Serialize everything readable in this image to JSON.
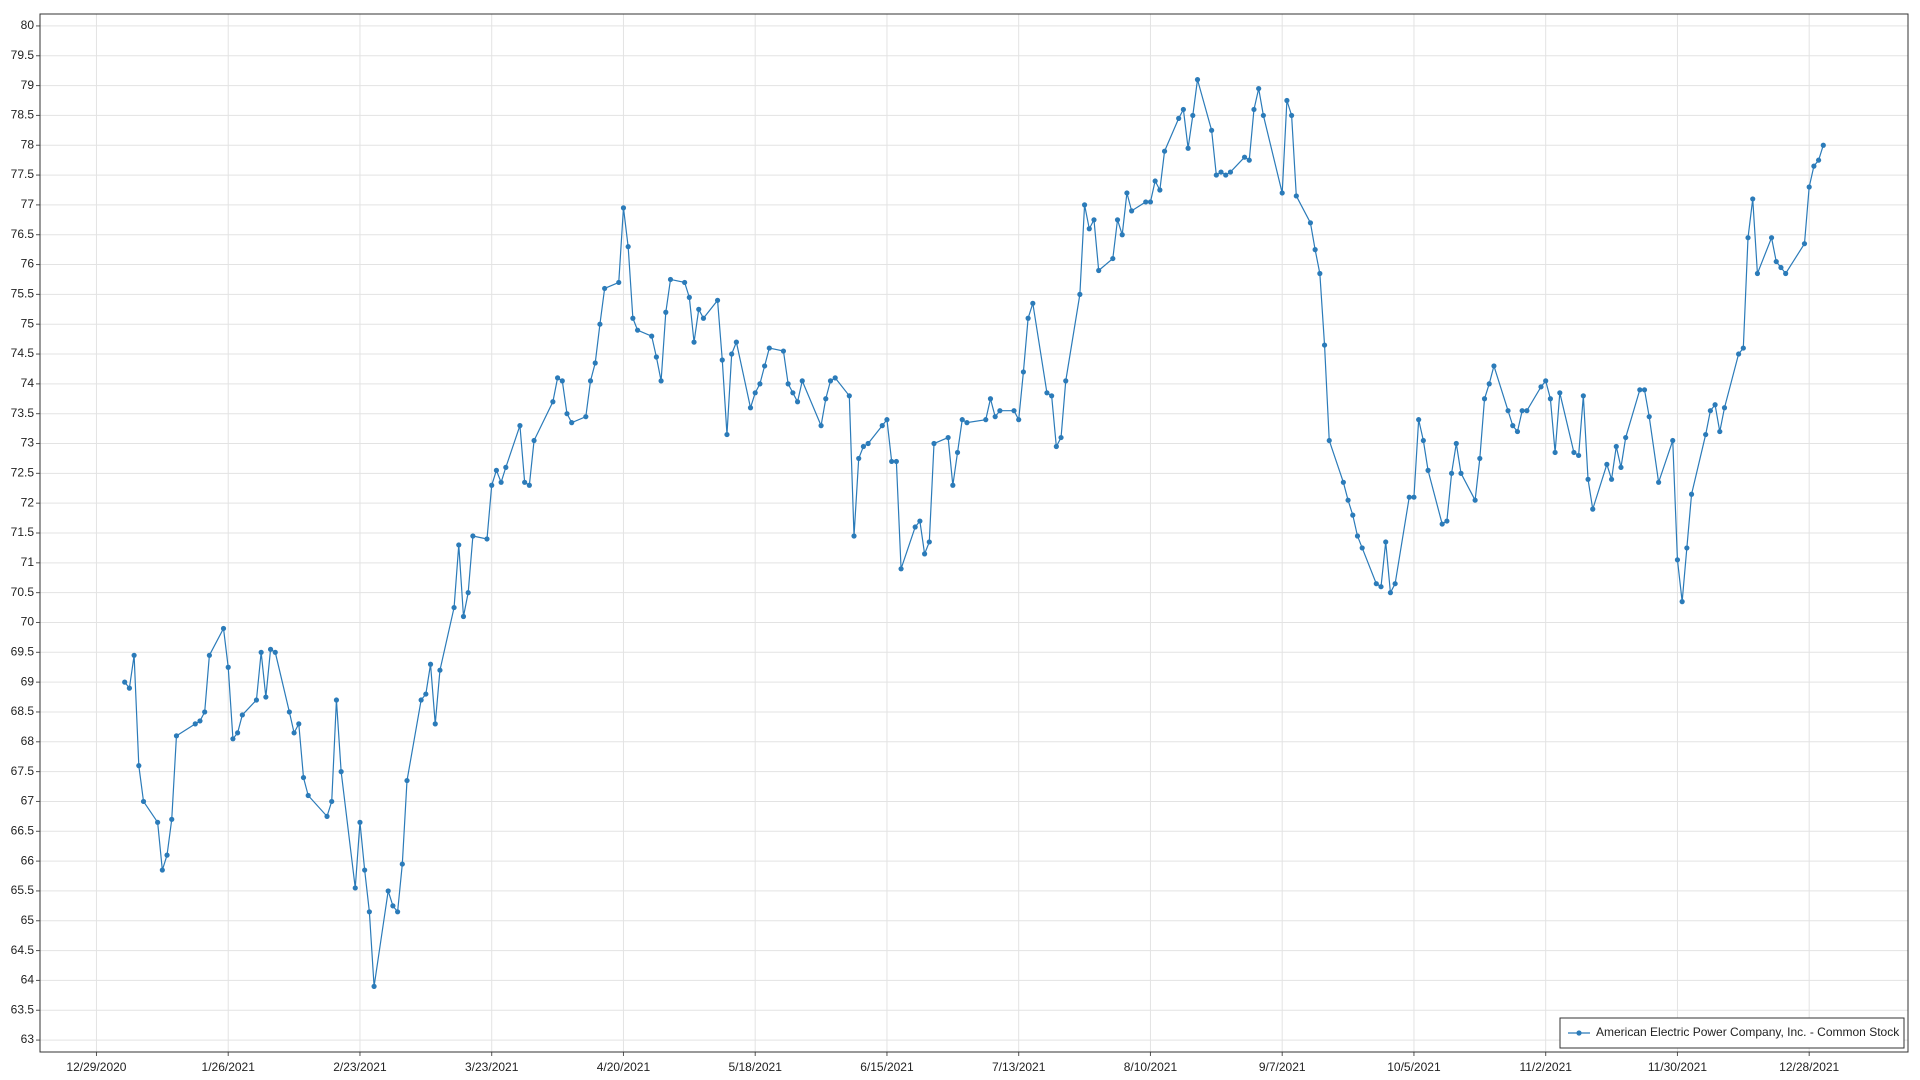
{
  "chart_data": {
    "type": "line",
    "x": [
      "1/4/2021",
      "1/5/2021",
      "1/6/2021",
      "1/7/2021",
      "1/8/2021",
      "1/11/2021",
      "1/12/2021",
      "1/13/2021",
      "1/14/2021",
      "1/15/2021",
      "1/19/2021",
      "1/20/2021",
      "1/21/2021",
      "1/22/2021",
      "1/25/2021",
      "1/26/2021",
      "1/27/2021",
      "1/28/2021",
      "1/29/2021",
      "2/1/2021",
      "2/2/2021",
      "2/3/2021",
      "2/4/2021",
      "2/5/2021",
      "2/8/2021",
      "2/9/2021",
      "2/10/2021",
      "2/11/2021",
      "2/12/2021",
      "2/16/2021",
      "2/17/2021",
      "2/18/2021",
      "2/19/2021",
      "2/22/2021",
      "2/23/2021",
      "2/24/2021",
      "2/25/2021",
      "2/26/2021",
      "3/1/2021",
      "3/2/2021",
      "3/3/2021",
      "3/4/2021",
      "3/5/2021",
      "3/8/2021",
      "3/9/2021",
      "3/10/2021",
      "3/11/2021",
      "3/12/2021",
      "3/15/2021",
      "3/16/2021",
      "3/17/2021",
      "3/18/2021",
      "3/19/2021",
      "3/22/2021",
      "3/23/2021",
      "3/24/2021",
      "3/25/2021",
      "3/26/2021",
      "3/29/2021",
      "3/30/2021",
      "3/31/2021",
      "4/1/2021",
      "4/5/2021",
      "4/6/2021",
      "4/7/2021",
      "4/8/2021",
      "4/9/2021",
      "4/12/2021",
      "4/13/2021",
      "4/14/2021",
      "4/15/2021",
      "4/16/2021",
      "4/19/2021",
      "4/20/2021",
      "4/21/2021",
      "4/22/2021",
      "4/23/2021",
      "4/26/2021",
      "4/27/2021",
      "4/28/2021",
      "4/29/2021",
      "4/30/2021",
      "5/3/2021",
      "5/4/2021",
      "5/5/2021",
      "5/6/2021",
      "5/7/2021",
      "5/10/2021",
      "5/11/2021",
      "5/12/2021",
      "5/13/2021",
      "5/14/2021",
      "5/17/2021",
      "5/18/2021",
      "5/19/2021",
      "5/20/2021",
      "5/21/2021",
      "5/24/2021",
      "5/25/2021",
      "5/26/2021",
      "5/27/2021",
      "5/28/2021",
      "6/1/2021",
      "6/2/2021",
      "6/3/2021",
      "6/4/2021",
      "6/7/2021",
      "6/8/2021",
      "6/9/2021",
      "6/10/2021",
      "6/11/2021",
      "6/14/2021",
      "6/15/2021",
      "6/16/2021",
      "6/17/2021",
      "6/18/2021",
      "6/21/2021",
      "6/22/2021",
      "6/23/2021",
      "6/24/2021",
      "6/25/2021",
      "6/28/2021",
      "6/29/2021",
      "6/30/2021",
      "7/1/2021",
      "7/2/2021",
      "7/6/2021",
      "7/7/2021",
      "7/8/2021",
      "7/9/2021",
      "7/12/2021",
      "7/13/2021",
      "7/14/2021",
      "7/15/2021",
      "7/16/2021",
      "7/19/2021",
      "7/20/2021",
      "7/21/2021",
      "7/22/2021",
      "7/23/2021",
      "7/26/2021",
      "7/27/2021",
      "7/28/2021",
      "7/29/2021",
      "7/30/2021",
      "8/2/2021",
      "8/3/2021",
      "8/4/2021",
      "8/5/2021",
      "8/6/2021",
      "8/9/2021",
      "8/10/2021",
      "8/11/2021",
      "8/12/2021",
      "8/13/2021",
      "8/16/2021",
      "8/17/2021",
      "8/18/2021",
      "8/19/2021",
      "8/20/2021",
      "8/23/2021",
      "8/24/2021",
      "8/25/2021",
      "8/26/2021",
      "8/27/2021",
      "8/30/2021",
      "8/31/2021",
      "9/1/2021",
      "9/2/2021",
      "9/3/2021",
      "9/7/2021",
      "9/8/2021",
      "9/9/2021",
      "9/10/2021",
      "9/13/2021",
      "9/14/2021",
      "9/15/2021",
      "9/16/2021",
      "9/17/2021",
      "9/20/2021",
      "9/21/2021",
      "9/22/2021",
      "9/23/2021",
      "9/24/2021",
      "9/27/2021",
      "9/28/2021",
      "9/29/2021",
      "9/30/2021",
      "10/1/2021",
      "10/4/2021",
      "10/5/2021",
      "10/6/2021",
      "10/7/2021",
      "10/8/2021",
      "10/11/2021",
      "10/12/2021",
      "10/13/2021",
      "10/14/2021",
      "10/15/2021",
      "10/18/2021",
      "10/19/2021",
      "10/20/2021",
      "10/21/2021",
      "10/22/2021",
      "10/25/2021",
      "10/26/2021",
      "10/27/2021",
      "10/28/2021",
      "10/29/2021",
      "11/1/2021",
      "11/2/2021",
      "11/3/2021",
      "11/4/2021",
      "11/5/2021",
      "11/8/2021",
      "11/9/2021",
      "11/10/2021",
      "11/11/2021",
      "11/12/2021",
      "11/15/2021",
      "11/16/2021",
      "11/17/2021",
      "11/18/2021",
      "11/19/2021",
      "11/22/2021",
      "11/23/2021",
      "11/24/2021",
      "11/26/2021",
      "11/29/2021",
      "11/30/2021",
      "12/1/2021",
      "12/2/2021",
      "12/3/2021",
      "12/6/2021",
      "12/7/2021",
      "12/8/2021",
      "12/9/2021",
      "12/10/2021",
      "12/13/2021",
      "12/14/2021",
      "12/15/2021",
      "12/16/2021",
      "12/17/2021",
      "12/20/2021",
      "12/21/2021",
      "12/22/2021",
      "12/23/2021",
      "12/27/2021",
      "12/28/2021",
      "12/29/2021",
      "12/30/2021",
      "12/31/2021"
    ],
    "series": [
      {
        "name": "American Electric Power Company, Inc. - Common Stock",
        "color": "#2b7bb9",
        "values": [
          69.0,
          68.9,
          69.45,
          67.6,
          67.0,
          66.65,
          65.85,
          66.1,
          66.7,
          68.1,
          68.3,
          68.35,
          68.5,
          69.45,
          69.9,
          69.25,
          68.05,
          68.15,
          68.45,
          68.7,
          69.5,
          68.75,
          69.55,
          69.5,
          68.5,
          68.15,
          68.3,
          67.4,
          67.1,
          66.75,
          67.0,
          68.7,
          67.5,
          65.55,
          66.65,
          65.85,
          65.15,
          63.9,
          65.5,
          65.25,
          65.15,
          65.95,
          67.35,
          68.7,
          68.8,
          69.3,
          68.3,
          69.2,
          70.25,
          71.3,
          70.1,
          70.5,
          71.45,
          71.4,
          72.3,
          72.55,
          72.35,
          72.6,
          73.3,
          72.35,
          72.3,
          73.05,
          73.7,
          74.1,
          74.05,
          73.5,
          73.35,
          73.45,
          74.05,
          74.35,
          75.0,
          75.6,
          75.7,
          76.95,
          76.3,
          75.1,
          74.9,
          74.8,
          74.45,
          74.05,
          75.2,
          75.75,
          75.7,
          75.45,
          74.7,
          75.25,
          75.1,
          75.4,
          74.4,
          73.15,
          74.5,
          74.7,
          73.6,
          73.85,
          74.0,
          74.3,
          74.6,
          74.55,
          74.0,
          73.85,
          73.7,
          74.05,
          73.3,
          73.75,
          74.05,
          74.1,
          73.8,
          71.45,
          72.75,
          72.95,
          73.0,
          73.3,
          73.4,
          72.7,
          72.7,
          70.9,
          71.6,
          71.7,
          71.15,
          71.35,
          73.0,
          73.1,
          72.3,
          72.85,
          73.4,
          73.35,
          73.4,
          73.75,
          73.45,
          73.55,
          73.55,
          73.4,
          74.2,
          75.1,
          75.35,
          73.85,
          73.8,
          72.95,
          73.1,
          74.05,
          75.5,
          77.0,
          76.6,
          76.75,
          75.9,
          76.1,
          76.75,
          76.5,
          77.2,
          76.9,
          77.05,
          77.05,
          77.4,
          77.25,
          77.9,
          78.45,
          78.6,
          77.95,
          78.5,
          79.1,
          78.25,
          77.5,
          77.55,
          77.5,
          77.55,
          77.8,
          77.75,
          78.6,
          78.95,
          78.5,
          77.2,
          78.75,
          78.5,
          77.15,
          76.7,
          76.25,
          75.85,
          74.65,
          73.05,
          72.35,
          72.05,
          71.8,
          71.45,
          71.25,
          70.65,
          70.6,
          71.35,
          70.5,
          70.65,
          72.1,
          72.1,
          73.4,
          73.05,
          72.55,
          71.65,
          71.7,
          72.5,
          73.0,
          72.5,
          72.05,
          72.75,
          73.75,
          74.0,
          74.3,
          73.55,
          73.3,
          73.2,
          73.55,
          73.55,
          73.95,
          74.05,
          73.75,
          72.85,
          73.85,
          72.85,
          72.8,
          73.8,
          72.4,
          71.9,
          72.65,
          72.4,
          72.95,
          72.6,
          73.1,
          73.9,
          73.9,
          73.45,
          72.35,
          73.05,
          71.05,
          70.35,
          71.25,
          72.15,
          73.15,
          73.55,
          73.65,
          73.2,
          73.6,
          74.5,
          74.6,
          76.45,
          77.1,
          75.85,
          76.45,
          76.05,
          75.95,
          75.85,
          76.35,
          77.3,
          77.65,
          77.75,
          78.0
        ]
      }
    ],
    "xlim": [
      "12/17/2020",
      "1/18/2022"
    ],
    "xticks": [
      "12/29/2020",
      "1/26/2021",
      "2/23/2021",
      "3/23/2021",
      "4/20/2021",
      "5/18/2021",
      "6/15/2021",
      "7/13/2021",
      "8/10/2021",
      "9/7/2021",
      "10/5/2021",
      "11/2/2021",
      "11/30/2021",
      "12/28/2021"
    ],
    "ylim": [
      62.8,
      80.2
    ],
    "yticks": [
      63,
      63.5,
      64,
      64.5,
      65,
      65.5,
      66,
      66.5,
      67,
      67.5,
      68,
      68.5,
      69,
      69.5,
      70,
      70.5,
      71,
      71.5,
      72,
      72.5,
      73,
      73.5,
      74,
      74.5,
      75,
      75.5,
      76,
      76.5,
      77,
      77.5,
      78,
      78.5,
      79,
      79.5,
      80
    ],
    "grid": true,
    "legend": "lower right"
  }
}
